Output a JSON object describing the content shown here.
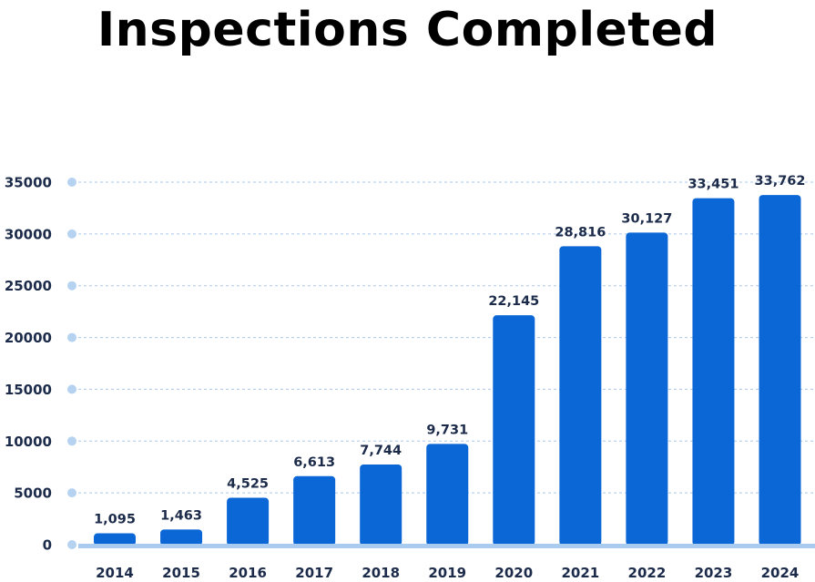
{
  "chart_data": {
    "type": "bar",
    "title": "Inspections Completed",
    "xlabel": "",
    "ylabel": "",
    "categories": [
      "2014",
      "2015",
      "2016",
      "2017",
      "2018",
      "2019",
      "2020",
      "2021",
      "2022",
      "2023",
      "2024"
    ],
    "values": [
      1095,
      1463,
      4525,
      6613,
      7744,
      9731,
      22145,
      28816,
      30127,
      33451,
      33762
    ],
    "value_labels": [
      "1,095",
      "1,463",
      "4,525",
      "6,613",
      "7,744",
      "9,731",
      "22,145",
      "28,816",
      "30,127",
      "33,451",
      "33,762"
    ],
    "ylim": [
      0,
      35000
    ],
    "yticks": [
      0,
      5000,
      10000,
      15000,
      20000,
      25000,
      30000,
      35000
    ],
    "grid": true,
    "colors": {
      "bar": "#0b66d6",
      "grid": "#a9c8ea",
      "tick_dot": "#b5d3f1",
      "baseline": "#a9cbef",
      "text": "#1c2b4a"
    }
  }
}
